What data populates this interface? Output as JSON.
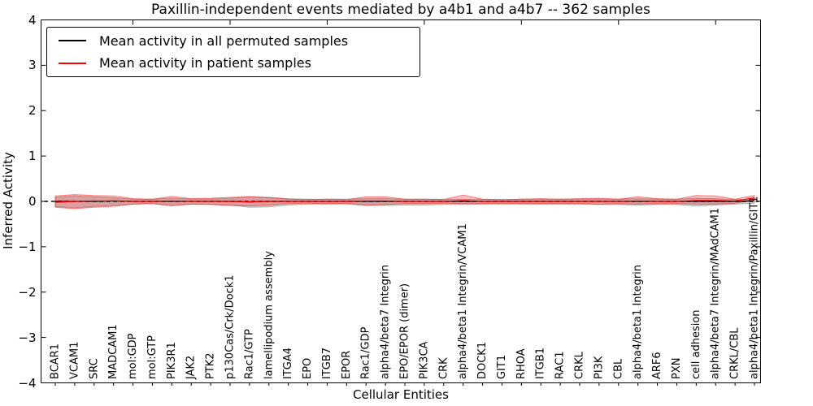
{
  "figure": {
    "title": "Paxillin-independent events mediated by a4b1 and a4b7 -- 362 samples",
    "xlabel": "Cellular Entities",
    "ylabel": "Inferred Activity"
  },
  "chart_data": {
    "type": "line",
    "title": "Paxillin-independent events mediated by a4b1 and a4b7 -- 362 samples",
    "xlabel": "Cellular Entities",
    "ylabel": "Inferred Activity",
    "ylim": [
      -4,
      4
    ],
    "grid": false,
    "legend_position": "upper left",
    "ytick_values": [
      4,
      3,
      2,
      1,
      0,
      -1,
      -2,
      -3,
      -4
    ],
    "ytick_labels": [
      "4",
      "3",
      "2",
      "1",
      "0",
      "−1",
      "−2",
      "−3",
      "−4"
    ],
    "top_tick_indices": [
      4,
      9,
      14,
      19,
      24,
      29,
      34
    ],
    "categories": [
      "BCAR1",
      "VCAM1",
      "SRC",
      "MADCAM1",
      "mol:GDP",
      "mol:GTP",
      "PIK3R1",
      "JAK2",
      "PTK2",
      "p130Cas/Crk/Dock1",
      "Rac1/GTP",
      "lamellipodium assembly",
      "ITGA4",
      "EPO",
      "ITGB7",
      "EPOR",
      "Rac1/GDP",
      "alpha4/beta7 Integrin",
      "EPO/EPOR (dimer)",
      "PIK3CA",
      "CRK",
      "alpha4/beta1 Integrin/VCAM1",
      "DOCK1",
      "GIT1",
      "RHOA",
      "ITGB1",
      "RAC1",
      "CRKL",
      "PI3K",
      "CBL",
      "alpha4/beta1 Integrin",
      "ARF6",
      "PXN",
      "cell adhesion",
      "alpha4/beta7 Integrin/MAdCAM1",
      "CRKL/CBL",
      "alpha4/beta1 Integrin/Paxillin/GIT1"
    ],
    "series": [
      {
        "name": "Mean activity in all permuted samples",
        "color": "#000000",
        "style": "solid",
        "values": [
          0,
          0,
          0,
          0.01,
          0,
          0,
          0,
          0,
          0,
          0,
          -0.01,
          0,
          0,
          0,
          0,
          0,
          0,
          0,
          0,
          0,
          0,
          0,
          0,
          0,
          0,
          0,
          0,
          0,
          0,
          0,
          0,
          0,
          0,
          0,
          0,
          0,
          0.01
        ]
      },
      {
        "name": "Mean activity in patient samples",
        "color": "#ff0000",
        "style": "solid",
        "values": [
          -0.02,
          0,
          0.01,
          0.01,
          0,
          0,
          0.01,
          0,
          0,
          0,
          -0.01,
          0,
          0,
          0,
          0,
          0,
          0.01,
          0.01,
          0,
          0,
          0,
          0.02,
          0,
          0,
          0,
          0,
          0,
          0,
          0,
          0,
          0.01,
          0,
          0,
          0.02,
          0.02,
          0.01,
          0.08
        ]
      }
    ],
    "bands": [
      {
        "name": "permuted-samples-range",
        "color": "#888888",
        "opacity": 0.38,
        "upper": [
          0.09,
          0.12,
          0.1,
          0.08,
          0.05,
          0.05,
          0.07,
          0.05,
          0.05,
          0.07,
          0.1,
          0.09,
          0.06,
          0.05,
          0.05,
          0.05,
          0.06,
          0.06,
          0.05,
          0.05,
          0.05,
          0.05,
          0.05,
          0.04,
          0.05,
          0.05,
          0.05,
          0.05,
          0.05,
          0.05,
          0.06,
          0.05,
          0.05,
          0.07,
          0.06,
          0.04,
          0.04
        ],
        "lower": [
          -0.11,
          -0.14,
          -0.11,
          -0.09,
          -0.06,
          -0.05,
          -0.08,
          -0.06,
          -0.06,
          -0.08,
          -0.13,
          -0.12,
          -0.08,
          -0.06,
          -0.06,
          -0.06,
          -0.09,
          -0.09,
          -0.08,
          -0.08,
          -0.07,
          -0.07,
          -0.06,
          -0.06,
          -0.06,
          -0.06,
          -0.06,
          -0.06,
          -0.07,
          -0.07,
          -0.08,
          -0.07,
          -0.07,
          -0.1,
          -0.08,
          -0.06,
          -0.04
        ]
      },
      {
        "name": "patient-samples-range",
        "color": "#ff0000",
        "opacity": 0.24,
        "upper": [
          0.12,
          0.15,
          0.13,
          0.12,
          0.06,
          0.05,
          0.11,
          0.06,
          0.07,
          0.09,
          0.1,
          0.08,
          0.05,
          0.04,
          0.05,
          0.04,
          0.1,
          0.1,
          0.05,
          0.05,
          0.04,
          0.14,
          0.05,
          0.04,
          0.05,
          0.06,
          0.05,
          0.06,
          0.07,
          0.05,
          0.1,
          0.06,
          0.05,
          0.13,
          0.12,
          0.05,
          0.13
        ],
        "lower": [
          -0.13,
          -0.16,
          -0.13,
          -0.11,
          -0.06,
          -0.05,
          -0.1,
          -0.06,
          -0.07,
          -0.09,
          -0.1,
          -0.08,
          -0.05,
          -0.04,
          -0.05,
          -0.04,
          -0.08,
          -0.07,
          -0.05,
          -0.05,
          -0.04,
          -0.05,
          -0.05,
          -0.04,
          -0.05,
          -0.05,
          -0.05,
          -0.05,
          -0.06,
          -0.05,
          -0.06,
          -0.05,
          -0.05,
          -0.06,
          -0.06,
          -0.04,
          0.03
        ]
      }
    ],
    "zero_line": {
      "y": 0,
      "style": "dashed",
      "color": "#000000"
    }
  },
  "legend": {
    "items": [
      {
        "label": "Mean activity in all permuted samples",
        "color": "#000000"
      },
      {
        "label": "Mean activity in patient samples",
        "color": "#ff0000"
      }
    ]
  }
}
